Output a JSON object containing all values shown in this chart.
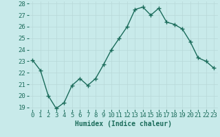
{
  "xlabel": "Humidex (Indice chaleur)",
  "ylabel": "",
  "x": [
    0,
    1,
    2,
    3,
    4,
    5,
    6,
    7,
    8,
    9,
    10,
    11,
    12,
    13,
    14,
    15,
    16,
    17,
    18,
    19,
    20,
    21,
    22,
    23
  ],
  "y": [
    23.1,
    22.2,
    20.0,
    18.9,
    19.4,
    20.9,
    21.5,
    20.9,
    21.5,
    22.7,
    24.0,
    25.0,
    26.0,
    27.5,
    27.7,
    27.0,
    27.6,
    26.4,
    26.2,
    25.8,
    24.7,
    23.3,
    23.0,
    22.4
  ],
  "line_color": "#1a6b5a",
  "marker": "+",
  "marker_size": 4,
  "marker_lw": 1.0,
  "bg_color": "#c8eaea",
  "grid_color": "#b8d8d8",
  "label_color": "#1a6b5a",
  "ylim": [
    19,
    28
  ],
  "yticks": [
    19,
    20,
    21,
    22,
    23,
    24,
    25,
    26,
    27,
    28
  ],
  "xticks": [
    0,
    1,
    2,
    3,
    4,
    5,
    6,
    7,
    8,
    9,
    10,
    11,
    12,
    13,
    14,
    15,
    16,
    17,
    18,
    19,
    20,
    21,
    22,
    23
  ],
  "xlim": [
    -0.5,
    23.5
  ],
  "font": "monospace",
  "xlabel_fontsize": 7,
  "tick_fontsize": 6.5,
  "linewidth": 1.0
}
